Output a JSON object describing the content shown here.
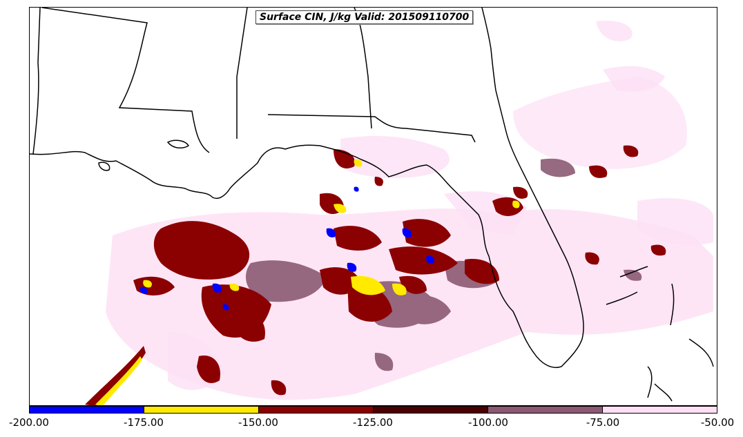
{
  "title": "Surface CIN, J/kg Valid: 201509110700",
  "colorbar": {
    "colors": [
      "#0000ff",
      "#ffea00",
      "#8b0000",
      "#4a0000",
      "#8b5a72",
      "#fde0f5"
    ],
    "tick_labels": [
      "-200.00",
      "-175.00",
      "-150.00",
      "-125.00",
      "-100.00",
      "-75.00",
      "-50.00"
    ]
  }
}
